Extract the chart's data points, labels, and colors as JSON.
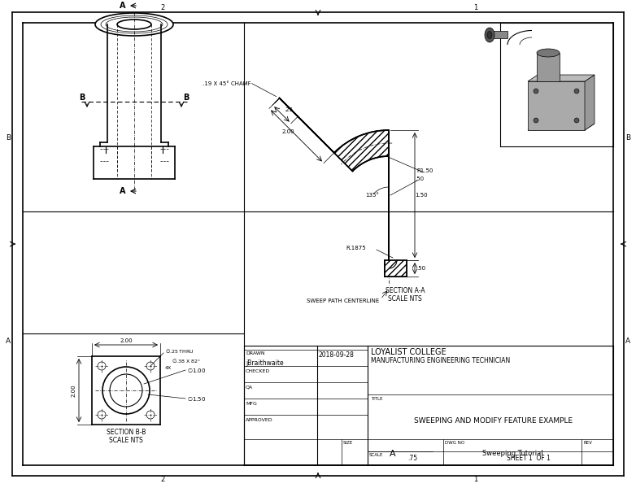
{
  "bg_color": "#ffffff",
  "line_color": "#000000",
  "title_block": {
    "drawn": "DRAWN",
    "drawn_name": "jBraithwaite",
    "date": "2018-09-28",
    "checked": "CHECKED",
    "qa": "QA",
    "mfg": "MFG",
    "approved": "APPROVED",
    "company": "LOYALIST COLLEGE",
    "dept": "MANUFACTURING ENGINEERING TECHNICIAN",
    "title_label": "TITLE",
    "title": "SWEEPING AND MODIFY FEATURE EXAMPLE",
    "size_label": "SIZE",
    "size": "A",
    "dwg_label": "DWG NO",
    "dwg": "Sweeping Tutorial",
    "rev_label": "REV",
    "scale_label": "SCALE",
    "scale": ".75",
    "sheet": "SHEET 1  OF 1"
  }
}
